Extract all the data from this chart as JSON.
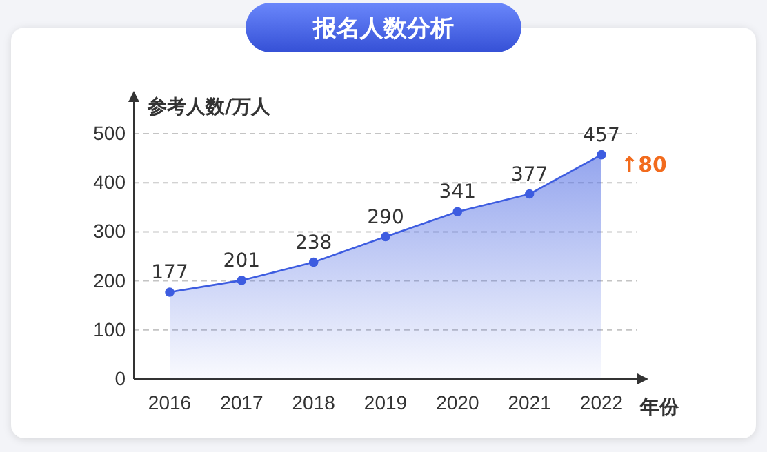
{
  "chart_data": {
    "type": "area",
    "title": "报名人数分析",
    "ylabel": "参考人数/万人",
    "xlabel": "年份",
    "categories": [
      "2016",
      "2017",
      "2018",
      "2019",
      "2020",
      "2021",
      "2022"
    ],
    "series": [
      {
        "color": "#3d5ce0",
        "values": [
          177,
          201,
          238,
          290,
          341,
          377,
          457
        ]
      }
    ],
    "ylim": [
      0,
      500
    ],
    "yticks": [
      0,
      100,
      200,
      300,
      400,
      500
    ],
    "grid": "y",
    "marker": "circle",
    "line_style": "solid",
    "data_labels": true,
    "annotations": [
      {
        "text": "↑80",
        "x": "2022",
        "y": 457
      }
    ]
  }
}
